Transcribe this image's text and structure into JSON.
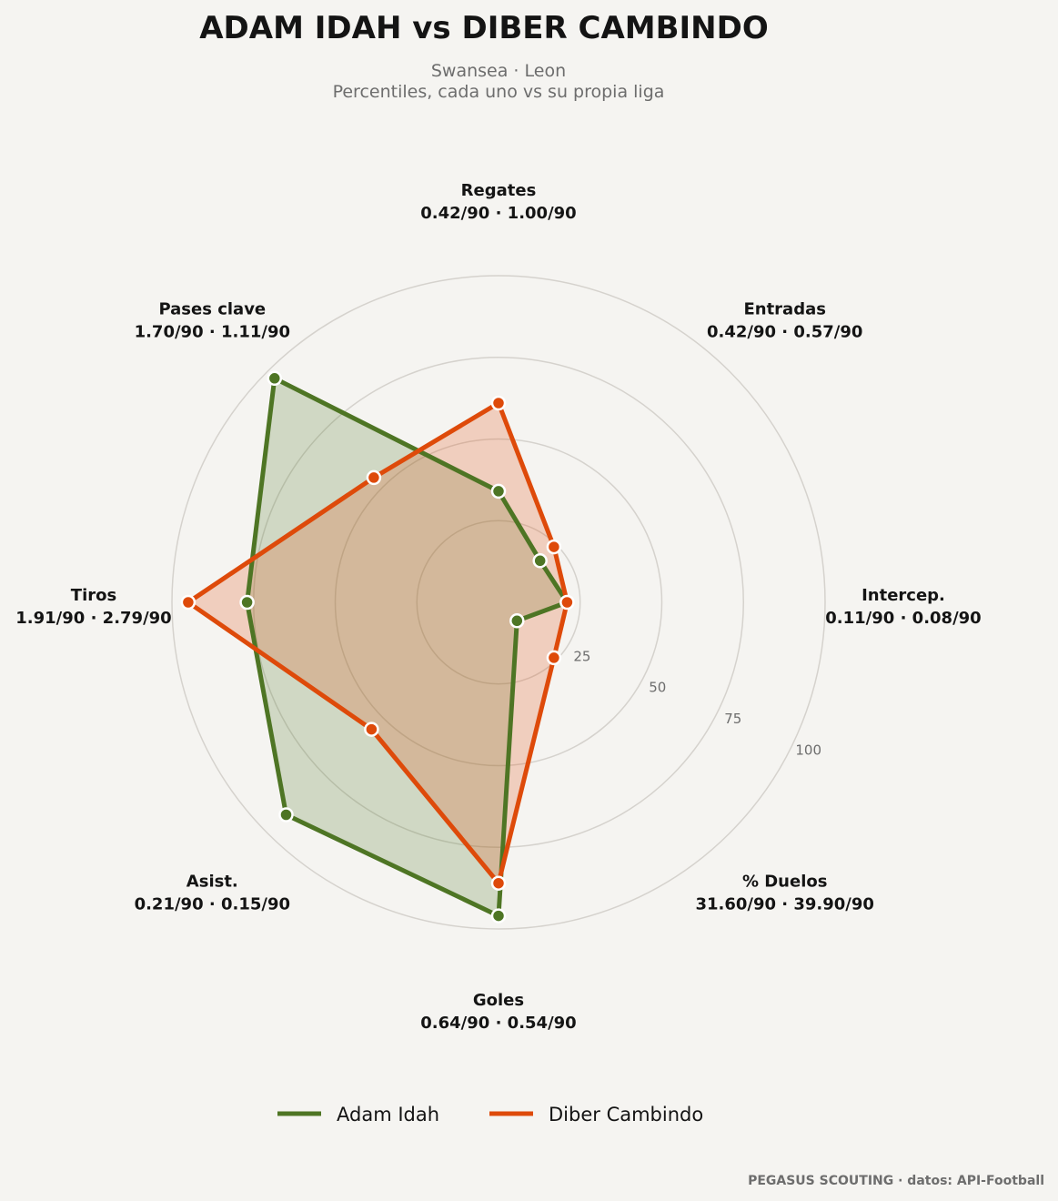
{
  "title": "ADAM IDAH  vs  DIBER CAMBINDO",
  "subtitle_line1": "Swansea · Leon",
  "subtitle_line2": "Percentiles, cada uno vs su propia liga",
  "footer": "PEGASUS SCOUTING · datos: API-Football",
  "colors": {
    "background": "#f5f4f1",
    "series_a": "#4e7524",
    "series_b": "#de4a0a",
    "grid": "#d5d2cd",
    "text": "#141414",
    "muted": "#6d6d6d"
  },
  "chart_data": {
    "type": "radar",
    "axes": [
      {
        "name": "Regates",
        "values_label": "0.42/90 · 1.00/90"
      },
      {
        "name": "Entradas",
        "values_label": "0.42/90 · 0.57/90"
      },
      {
        "name": "Intercep.",
        "values_label": "0.11/90 · 0.08/90"
      },
      {
        "name": "% Duelos",
        "values_label": "31.60/90 · 39.90/90"
      },
      {
        "name": "Goles",
        "values_label": "0.64/90 · 0.54/90"
      },
      {
        "name": "Asist.",
        "values_label": "0.21/90 · 0.15/90"
      },
      {
        "name": "Tiros",
        "values_label": "1.91/90 · 2.79/90"
      },
      {
        "name": "Pases clave",
        "values_label": "1.70/90 · 1.11/90"
      }
    ],
    "series": [
      {
        "name": "Adam Idah",
        "values": [
          34,
          18,
          21,
          8,
          96,
          92,
          77,
          97
        ]
      },
      {
        "name": "Diber Cambindo",
        "values": [
          61,
          24,
          21,
          24,
          86,
          55,
          95,
          54
        ]
      }
    ],
    "radial_ticks": [
      "25",
      "50",
      "75",
      "100"
    ],
    "rlim": [
      0,
      100
    ],
    "grid": true,
    "legend_position": "bottom-center"
  }
}
